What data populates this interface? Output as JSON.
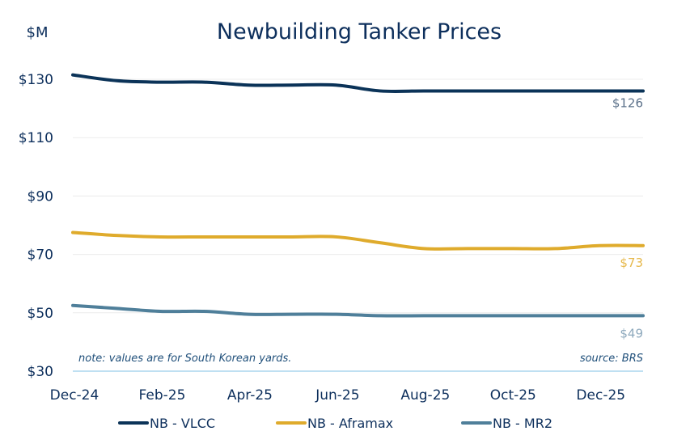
{
  "chart_data": {
    "type": "line",
    "title": "Newbuilding Tanker Prices",
    "ylabel": "$M",
    "xlabel": "",
    "ylim": [
      30,
      130
    ],
    "yticks": [
      30,
      50,
      70,
      90,
      110,
      130
    ],
    "ytick_labels": [
      "$30",
      "$50",
      "$70",
      "$90",
      "$110",
      "$130"
    ],
    "x": [
      "Dec-24",
      "Jan-25",
      "Feb-25",
      "Mar-25",
      "Apr-25",
      "May-25",
      "Jun-25",
      "Jul-25",
      "Aug-25",
      "Sep-25",
      "Oct-25",
      "Nov-25",
      "Dec-25",
      "Jan-26"
    ],
    "xtick_labels": [
      "Dec-24",
      "Feb-25",
      "Apr-25",
      "Jun-25",
      "Aug-25",
      "Oct-25",
      "Dec-25"
    ],
    "grid": true,
    "legend": "bottom",
    "series": [
      {
        "name": "NB - VLCC",
        "color": "#0b3358",
        "values": [
          131.5,
          129.5,
          129,
          129,
          128,
          128,
          128,
          126,
          126,
          126,
          126,
          126,
          126,
          126
        ],
        "end_label": "$126",
        "end_label_color": "#5a7089"
      },
      {
        "name": "NB - Aframax",
        "color": "#dfab2c",
        "values": [
          77.5,
          76.5,
          76,
          76,
          76,
          76,
          76,
          74,
          72,
          72,
          72,
          72,
          73,
          73
        ],
        "end_label": "$73",
        "end_label_color": "#e6b84a"
      },
      {
        "name": "NB - MR2",
        "color": "#4f7f9a",
        "values": [
          52.5,
          51.5,
          50.5,
          50.5,
          49.5,
          49.5,
          49.5,
          49,
          49,
          49,
          49,
          49,
          49,
          49
        ],
        "end_label": "$49",
        "end_label_color": "#8ea9bd"
      }
    ],
    "annotations": {
      "note": "note: values are for South Korean yards.",
      "source": "source: BRS"
    }
  }
}
